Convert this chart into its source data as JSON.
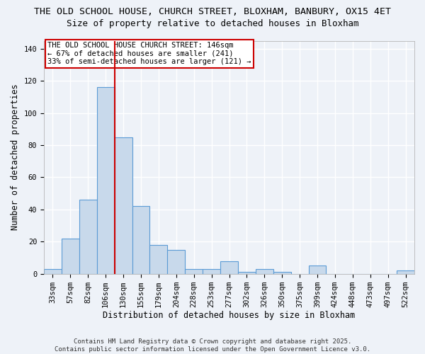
{
  "title_line1": "THE OLD SCHOOL HOUSE, CHURCH STREET, BLOXHAM, BANBURY, OX15 4ET",
  "title_line2": "Size of property relative to detached houses in Bloxham",
  "xlabel": "Distribution of detached houses by size in Bloxham",
  "ylabel": "Number of detached properties",
  "categories": [
    "33sqm",
    "57sqm",
    "82sqm",
    "106sqm",
    "130sqm",
    "155sqm",
    "179sqm",
    "204sqm",
    "228sqm",
    "253sqm",
    "277sqm",
    "302sqm",
    "326sqm",
    "350sqm",
    "375sqm",
    "399sqm",
    "424sqm",
    "448sqm",
    "473sqm",
    "497sqm",
    "522sqm"
  ],
  "values": [
    3,
    22,
    46,
    116,
    85,
    42,
    18,
    15,
    3,
    3,
    8,
    1,
    3,
    1,
    0,
    5,
    0,
    0,
    0,
    0,
    2
  ],
  "bar_color": "#c8d9eb",
  "bar_edge_color": "#5b9bd5",
  "vline_x": 3.5,
  "vline_color": "#cc0000",
  "annotation_text": "THE OLD SCHOOL HOUSE CHURCH STREET: 146sqm\n← 67% of detached houses are smaller (241)\n33% of semi-detached houses are larger (121) →",
  "annotation_box_color": "white",
  "annotation_box_edge_color": "#cc0000",
  "ylim": [
    0,
    145
  ],
  "yticks": [
    0,
    20,
    40,
    60,
    80,
    100,
    120,
    140
  ],
  "footer_text": "Contains HM Land Registry data © Crown copyright and database right 2025.\nContains public sector information licensed under the Open Government Licence v3.0.",
  "background_color": "#eef2f8",
  "grid_color": "white",
  "title_fontsize": 9.5,
  "subtitle_fontsize": 9,
  "axis_label_fontsize": 8.5,
  "tick_fontsize": 7.5,
  "annotation_fontsize": 7.5,
  "footer_fontsize": 6.5
}
